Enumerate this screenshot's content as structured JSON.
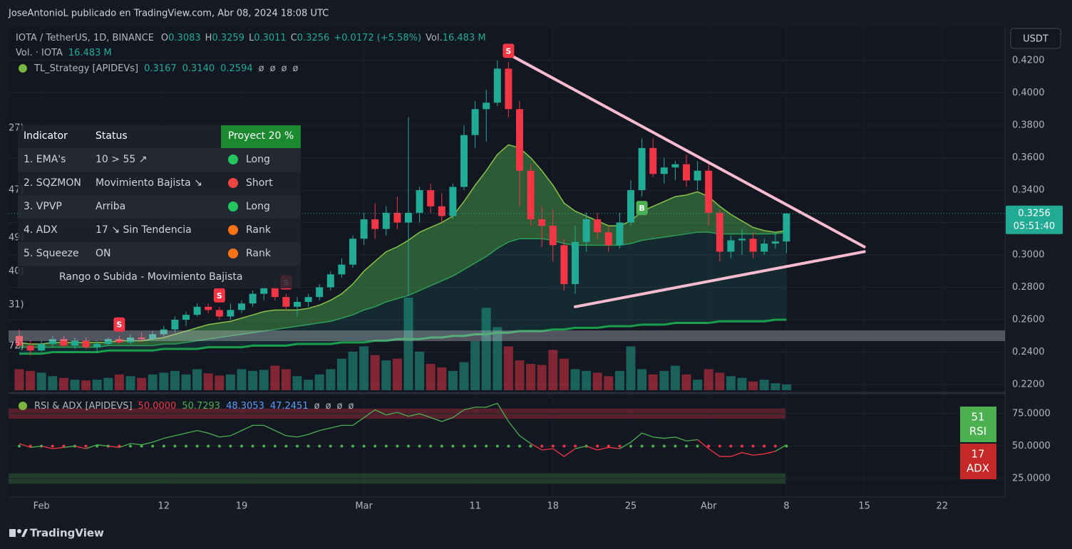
{
  "header": {
    "byline": "JoseAntonioL publicado en TradingView.com, Abr 08, 2024 18:08 UTC"
  },
  "footer": {
    "brand": "TradingView"
  },
  "edge_labels": [
    "27)",
    "47)",
    "49)",
    "40)",
    "31)",
    "72)"
  ],
  "indicator_table": {
    "header": [
      "Indicator",
      "Status",
      "Proyect 20 %"
    ],
    "rows": [
      {
        "indicator": "1. EMA's",
        "status": "10 > 55 ↗",
        "signal": "Long",
        "color": "#22c55e"
      },
      {
        "indicator": "2. SQZMON",
        "status": "Movimiento Bajista ↘",
        "signal": "Short",
        "color": "#ef4444"
      },
      {
        "indicator": "3. VPVP",
        "status": "Arriba",
        "signal": "Long",
        "color": "#22c55e"
      },
      {
        "indicator": "4. ADX",
        "status": "17 ↘ Sin Tendencia",
        "signal": "Rank",
        "color": "#f97316"
      },
      {
        "indicator": "5. Squeeze",
        "status": "ON",
        "signal": "Rank",
        "color": "#f97316"
      }
    ],
    "footer": "Rango o Subida - Movimiento Bajista"
  },
  "chart_data": [
    {
      "type": "candlestick",
      "symbol": "IOTA / TetherUS, 1D, BINANCE",
      "ohlc": [
        {
          "label": "O",
          "value": 0.3083
        },
        {
          "label": "H",
          "value": 0.3259
        },
        {
          "label": "L",
          "value": 0.3011
        },
        {
          "label": "C",
          "value": 0.3256
        }
      ],
      "change": "+0.0172 (+5.58%)",
      "volume_label": "Vol.",
      "volume_value": "16.483 M",
      "volume_study": "Vol. · IOTA",
      "strategy": {
        "name": "TL_Strategy [APIDEVs]",
        "values": [
          "0.3167",
          "0.3140",
          "0.2594"
        ],
        "empty": [
          "ø",
          "ø",
          "ø",
          "ø"
        ]
      },
      "currency": "USDT",
      "last_price": 0.3256,
      "countdown": "05:51:40",
      "up_color": "#22ab94",
      "down_color": "#f23645",
      "categories": [
        null,
        null,
        "Feb",
        null,
        null,
        null,
        null,
        null,
        null,
        null,
        null,
        null,
        null,
        "12",
        null,
        null,
        null,
        null,
        null,
        null,
        "19",
        null,
        null,
        null,
        null,
        null,
        null,
        null,
        null,
        null,
        null,
        "Mar",
        null,
        null,
        null,
        null,
        null,
        null,
        null,
        null,
        null,
        "11",
        null,
        null,
        null,
        null,
        null,
        null,
        "18",
        null,
        null,
        null,
        null,
        null,
        null,
        "25",
        null,
        null,
        null,
        null,
        null,
        null,
        "Abr",
        null,
        null,
        null,
        null,
        null,
        null,
        "8",
        null,
        null,
        null,
        null,
        null,
        null,
        "15",
        null,
        null,
        null,
        null,
        null,
        null,
        "22",
        null,
        null,
        null,
        null,
        null
      ],
      "open": [
        0.25,
        0.244,
        0.241,
        0.245,
        0.248,
        0.244,
        0.247,
        0.243,
        0.245,
        0.248,
        0.246,
        0.249,
        0.248,
        0.251,
        0.254,
        0.26,
        0.263,
        0.268,
        0.266,
        0.262,
        0.266,
        0.27,
        0.276,
        0.28,
        0.274,
        0.268,
        0.271,
        0.274,
        0.28,
        0.288,
        0.294,
        0.31,
        0.322,
        0.316,
        0.326,
        0.32,
        0.326,
        0.34,
        0.33,
        0.324,
        0.342,
        0.374,
        0.39,
        0.394,
        0.415,
        0.39,
        0.352,
        0.322,
        0.318,
        0.306,
        0.282,
        0.308,
        0.322,
        0.314,
        0.306,
        0.32,
        0.34,
        0.366,
        0.35,
        0.354,
        0.356,
        0.346,
        0.352,
        0.326,
        0.302,
        0.309,
        0.31,
        0.302,
        0.307,
        0.3083,
        null,
        null,
        null,
        null,
        null,
        null,
        null,
        null,
        null,
        null,
        null,
        null,
        null,
        null,
        null,
        null,
        null,
        null,
        null
      ],
      "high": [
        0.254,
        0.247,
        0.247,
        0.25,
        0.25,
        0.249,
        0.249,
        0.247,
        0.249,
        0.25,
        0.251,
        0.252,
        0.253,
        0.256,
        0.262,
        0.265,
        0.27,
        0.27,
        0.268,
        0.27,
        0.272,
        0.278,
        0.282,
        0.284,
        0.276,
        0.274,
        0.276,
        0.282,
        0.29,
        0.298,
        0.312,
        0.326,
        0.332,
        0.33,
        0.336,
        0.385,
        0.342,
        0.344,
        0.338,
        0.344,
        0.38,
        0.395,
        0.402,
        0.42,
        0.419,
        0.395,
        0.356,
        0.33,
        0.328,
        0.31,
        0.318,
        0.326,
        0.326,
        0.318,
        0.326,
        0.346,
        0.372,
        0.372,
        0.36,
        0.358,
        0.362,
        0.358,
        0.356,
        0.328,
        0.312,
        0.316,
        0.314,
        0.31,
        0.314,
        0.3259,
        null,
        null,
        null,
        null,
        null,
        null,
        null,
        null,
        null,
        null,
        null,
        null,
        null,
        null,
        null,
        null,
        null,
        null,
        null
      ],
      "low": [
        0.242,
        0.238,
        0.24,
        0.243,
        0.243,
        0.242,
        0.242,
        0.24,
        0.244,
        0.245,
        0.245,
        0.246,
        0.247,
        0.249,
        0.252,
        0.256,
        0.262,
        0.264,
        0.26,
        0.26,
        0.264,
        0.268,
        0.272,
        0.272,
        0.266,
        0.262,
        0.268,
        0.272,
        0.278,
        0.286,
        0.292,
        0.306,
        0.31,
        0.312,
        0.316,
        0.275,
        0.32,
        0.326,
        0.32,
        0.322,
        0.34,
        0.366,
        0.37,
        0.392,
        0.385,
        0.33,
        0.318,
        0.305,
        0.296,
        0.278,
        0.276,
        0.302,
        0.31,
        0.302,
        0.304,
        0.318,
        0.336,
        0.348,
        0.344,
        0.346,
        0.342,
        0.34,
        0.318,
        0.296,
        0.298,
        0.3,
        0.298,
        0.3,
        0.304,
        0.3011,
        null,
        null,
        null,
        null,
        null,
        null,
        null,
        null,
        null,
        null,
        null,
        null,
        null,
        null,
        null,
        null,
        null,
        null,
        null
      ],
      "close": [
        0.244,
        0.241,
        0.245,
        0.248,
        0.244,
        0.247,
        0.243,
        0.245,
        0.248,
        0.246,
        0.249,
        0.248,
        0.251,
        0.254,
        0.26,
        0.263,
        0.268,
        0.266,
        0.262,
        0.266,
        0.27,
        0.276,
        0.28,
        0.274,
        0.268,
        0.271,
        0.274,
        0.28,
        0.288,
        0.294,
        0.31,
        0.322,
        0.316,
        0.326,
        0.32,
        0.326,
        0.34,
        0.33,
        0.324,
        0.342,
        0.374,
        0.39,
        0.394,
        0.415,
        0.39,
        0.352,
        0.322,
        0.318,
        0.306,
        0.282,
        0.308,
        0.322,
        0.314,
        0.306,
        0.32,
        0.34,
        0.366,
        0.35,
        0.354,
        0.356,
        0.346,
        0.352,
        0.326,
        0.302,
        0.309,
        0.31,
        0.302,
        0.307,
        0.3083,
        0.3256,
        null,
        null,
        null,
        null,
        null,
        null,
        null,
        null,
        null,
        null,
        null,
        null,
        null,
        null,
        null,
        null,
        null,
        null,
        null
      ],
      "volume": [
        60,
        55,
        50,
        40,
        35,
        30,
        28,
        30,
        35,
        45,
        40,
        35,
        45,
        50,
        55,
        45,
        60,
        48,
        42,
        45,
        60,
        55,
        58,
        70,
        60,
        40,
        30,
        45,
        60,
        90,
        110,
        125,
        100,
        85,
        90,
        264,
        110,
        75,
        65,
        55,
        80,
        140,
        235,
        180,
        125,
        85,
        75,
        72,
        115,
        90,
        60,
        55,
        50,
        40,
        55,
        125,
        60,
        45,
        55,
        70,
        45,
        30,
        60,
        50,
        40,
        35,
        25,
        30,
        20,
        16.483,
        null,
        null,
        null,
        null,
        null,
        null,
        null,
        null,
        null,
        null,
        null,
        null,
        null,
        null,
        null,
        null,
        null,
        null,
        null
      ],
      "overlays": [
        {
          "color": "#8bc34a",
          "values": [
            0.246,
            0.245,
            0.245,
            0.246,
            0.246,
            0.246,
            0.246,
            0.246,
            0.246,
            0.247,
            0.247,
            0.247,
            0.248,
            0.249,
            0.251,
            0.253,
            0.255,
            0.257,
            0.258,
            0.259,
            0.261,
            0.263,
            0.265,
            0.266,
            0.266,
            0.266,
            0.267,
            0.269,
            0.272,
            0.276,
            0.282,
            0.29,
            0.296,
            0.302,
            0.305,
            0.309,
            0.314,
            0.317,
            0.32,
            0.324,
            0.333,
            0.343,
            0.352,
            0.362,
            0.368,
            0.366,
            0.36,
            0.352,
            0.343,
            0.332,
            0.327,
            0.324,
            0.321,
            0.318,
            0.318,
            0.321,
            0.327,
            0.33,
            0.333,
            0.336,
            0.337,
            0.339,
            0.336,
            0.33,
            0.325,
            0.321,
            0.317,
            0.315,
            0.314,
            0.315,
            null,
            null,
            null,
            null,
            null,
            null,
            null,
            null,
            null,
            null,
            null,
            null,
            null,
            null,
            null,
            null,
            null,
            null,
            null
          ]
        },
        {
          "color": "#2e9d57",
          "values": [
            0.243,
            0.243,
            0.243,
            0.243,
            0.243,
            0.243,
            0.243,
            0.243,
            0.244,
            0.244,
            0.244,
            0.244,
            0.244,
            0.245,
            0.245,
            0.246,
            0.247,
            0.248,
            0.249,
            0.25,
            0.251,
            0.252,
            0.253,
            0.254,
            0.255,
            0.256,
            0.257,
            0.258,
            0.259,
            0.261,
            0.263,
            0.266,
            0.268,
            0.271,
            0.273,
            0.275,
            0.278,
            0.281,
            0.284,
            0.287,
            0.291,
            0.295,
            0.299,
            0.304,
            0.308,
            0.31,
            0.31,
            0.31,
            0.309,
            0.307,
            0.306,
            0.306,
            0.306,
            0.306,
            0.306,
            0.307,
            0.309,
            0.31,
            0.311,
            0.312,
            0.313,
            0.314,
            0.314,
            0.313,
            0.313,
            0.313,
            0.313,
            0.313,
            0.313,
            0.314,
            null,
            null,
            null,
            null,
            null,
            null,
            null,
            null,
            null,
            null,
            null,
            null,
            null,
            null,
            null,
            null,
            null,
            null,
            null
          ]
        },
        {
          "color": "#1b9e4b",
          "values": [
            0.239,
            0.239,
            0.239,
            0.24,
            0.24,
            0.24,
            0.24,
            0.24,
            0.241,
            0.241,
            0.241,
            0.241,
            0.241,
            0.242,
            0.242,
            0.242,
            0.242,
            0.243,
            0.243,
            0.243,
            0.243,
            0.244,
            0.244,
            0.244,
            0.244,
            0.245,
            0.245,
            0.245,
            0.245,
            0.246,
            0.246,
            0.246,
            0.247,
            0.247,
            0.248,
            0.248,
            0.248,
            0.249,
            0.249,
            0.25,
            0.25,
            0.251,
            0.251,
            0.252,
            0.252,
            0.253,
            0.253,
            0.253,
            0.254,
            0.254,
            0.255,
            0.255,
            0.255,
            0.256,
            0.256,
            0.256,
            0.257,
            0.257,
            0.257,
            0.258,
            0.258,
            0.258,
            0.258,
            0.259,
            0.259,
            0.259,
            0.259,
            0.259,
            0.26,
            0.26,
            null,
            null,
            null,
            null,
            null,
            null,
            null,
            null,
            null,
            null,
            null,
            null,
            null,
            null,
            null,
            null,
            null,
            null,
            null
          ]
        }
      ],
      "trendlines": [
        {
          "from": [
            44,
            0.424
          ],
          "to": [
            76,
            0.305
          ],
          "color": "#f8bbd0"
        },
        {
          "from": [
            50,
            0.268
          ],
          "to": [
            76,
            0.302
          ],
          "color": "#f8bbd0"
        }
      ],
      "zone": [
        0.2468,
        0.2534
      ],
      "signals": [
        {
          "label": "S",
          "at": 9
        },
        {
          "label": "S",
          "at": 18
        },
        {
          "label": "S",
          "at": 24
        },
        {
          "label": "S",
          "at": 44
        },
        {
          "label": "B",
          "at": 56
        }
      ],
      "ylim": [
        0.2156,
        0.4398
      ],
      "yticks": [
        {
          "value": 0.22,
          "label": "0.2200"
        },
        {
          "value": 0.24,
          "label": "0.2400"
        },
        {
          "value": 0.26,
          "label": "0.2600"
        },
        {
          "value": 0.28,
          "label": "0.2800"
        },
        {
          "value": 0.3,
          "label": "0.3000"
        },
        {
          "value": 0.32,
          "label": "0.3200"
        },
        {
          "value": 0.34,
          "label": "0.3400"
        },
        {
          "value": 0.36,
          "label": "0.3600"
        },
        {
          "value": 0.38,
          "label": "0.3800"
        },
        {
          "value": 0.4,
          "label": "0.4000"
        },
        {
          "value": 0.42,
          "label": "0.4200"
        }
      ],
      "grid": true
    },
    {
      "type": "line",
      "title": "RSI & ADX [APIDEVS]",
      "midline": {
        "value": 50,
        "label": "50.0000"
      },
      "legend_values": [
        {
          "text": "50.7293",
          "color": "#4caf50"
        },
        {
          "text": "48.3053",
          "color": "#5b9cf6"
        },
        {
          "text": "47.2451",
          "color": "#5b9cf6"
        }
      ],
      "legend_empty": [
        "ø",
        "ø",
        "ø",
        "ø"
      ],
      "series": [
        {
          "color": "#4caf50",
          "below_color": "#f23645",
          "values": [
            52,
            49,
            50,
            48,
            49,
            50,
            48,
            51,
            50,
            49,
            52,
            51,
            53,
            56,
            58,
            60,
            62,
            60,
            57,
            58,
            62,
            66,
            66,
            62,
            58,
            57,
            59,
            62,
            64,
            66,
            66,
            72,
            78,
            74,
            76,
            73,
            75,
            72,
            69,
            72,
            78,
            80,
            80,
            83,
            69,
            58,
            52,
            47,
            48,
            42,
            48,
            50,
            47,
            49,
            48,
            53,
            60,
            57,
            56,
            57,
            54,
            55,
            48,
            42,
            42,
            45,
            43,
            44,
            46,
            51,
            null,
            null,
            null,
            null,
            null,
            null,
            null,
            null,
            null,
            null,
            null,
            null,
            null,
            null,
            null,
            null,
            null,
            null,
            null
          ]
        }
      ],
      "bands": [
        {
          "range": [
            71,
            79
          ],
          "color": "rgba(242,54,69,0.3)"
        },
        {
          "range": [
            21,
            29
          ],
          "color": "rgba(76,175,80,0.25)"
        }
      ],
      "badges": [
        {
          "value": 51,
          "label": "RSI",
          "color": "#4caf50"
        },
        {
          "value": 17,
          "label": "ADX",
          "color": "#c62828"
        }
      ],
      "ylim": [
        13.5,
        86.5
      ],
      "yticks": [
        {
          "value": 25,
          "label": "25.0000"
        },
        {
          "value": 50,
          "label": "50.0000"
        },
        {
          "value": 75,
          "label": "75.0000"
        }
      ]
    }
  ]
}
